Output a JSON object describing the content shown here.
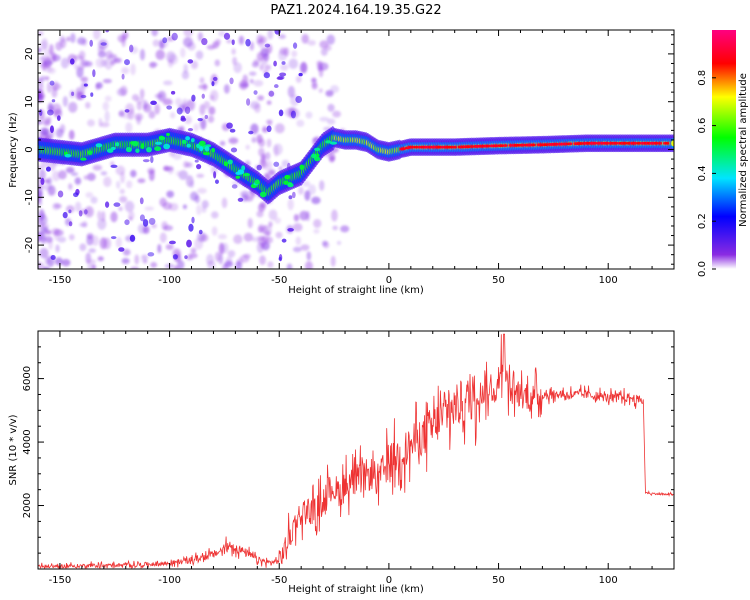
{
  "title": "PAZ1.2024.164.19.35.G22",
  "chart_data": [
    {
      "type": "heatmap",
      "xlabel": "Height of straight line (km)",
      "ylabel": "Frequency (Hz)",
      "xlim": [
        -160,
        130
      ],
      "ylim": [
        -25,
        25
      ],
      "x_ticks": [
        -150,
        -100,
        -50,
        0,
        50,
        100
      ],
      "y_ticks": [
        -20,
        -10,
        0,
        10,
        20
      ],
      "colorbar": {
        "label": "Normalized spectral amplitude",
        "range": [
          0,
          1
        ],
        "ticks": [
          0.0,
          0.2,
          0.4,
          0.6,
          0.8
        ],
        "tick_labels": [
          "0.0",
          "0.2",
          "0.4",
          "0.6",
          "0.8"
        ]
      },
      "ridge": {
        "x": [
          -160,
          -140,
          -125,
          -110,
          -100,
          -90,
          -80,
          -70,
          -60,
          -55,
          -50,
          -45,
          -40,
          -35,
          -30,
          -25,
          -20,
          -15,
          -10,
          -5,
          0,
          5,
          10,
          30,
          50,
          70,
          90,
          110,
          130
        ],
        "frequency": [
          0,
          -1,
          1,
          1,
          2,
          1,
          -1,
          -4,
          -7,
          -9,
          -7,
          -6,
          -5,
          -2,
          1,
          2.5,
          2,
          2,
          1.5,
          0,
          -0.5,
          0,
          0.5,
          0.5,
          0.8,
          1,
          1.3,
          1.3,
          1.3
        ]
      }
    },
    {
      "type": "line",
      "xlabel": "Height of straight line (km)",
      "ylabel": "SNR (10 * v/v)",
      "xlim": [
        -160,
        130
      ],
      "ylim": [
        0,
        7500
      ],
      "x_ticks": [
        -150,
        -100,
        -50,
        0,
        50,
        100
      ],
      "y_ticks": [
        2000,
        4000,
        6000
      ],
      "series": [
        {
          "color": "#ee3333",
          "x": [
            -160,
            -120,
            -100,
            -90,
            -80,
            -72,
            -65,
            -60,
            -55,
            -50,
            -46,
            -42,
            -38,
            -34,
            -30,
            -26,
            -22,
            -18,
            -15,
            -12,
            -8,
            -5,
            0,
            5,
            10,
            15,
            20,
            25,
            30,
            35,
            40,
            45,
            50,
            52,
            55,
            60,
            65,
            70,
            80,
            90,
            100,
            110,
            116,
            117,
            125,
            130
          ],
          "y": [
            80,
            120,
            180,
            280,
            450,
            750,
            500,
            300,
            200,
            250,
            900,
            1600,
            1900,
            1800,
            2200,
            2600,
            2400,
            2800,
            2700,
            2900,
            3000,
            2800,
            3400,
            3600,
            3900,
            4200,
            4500,
            4800,
            5100,
            5300,
            5500,
            5600,
            5700,
            6500,
            5600,
            5500,
            5400,
            5500,
            5500,
            5500,
            5400,
            5400,
            5300,
            2400,
            2350,
            2350
          ]
        }
      ]
    }
  ]
}
